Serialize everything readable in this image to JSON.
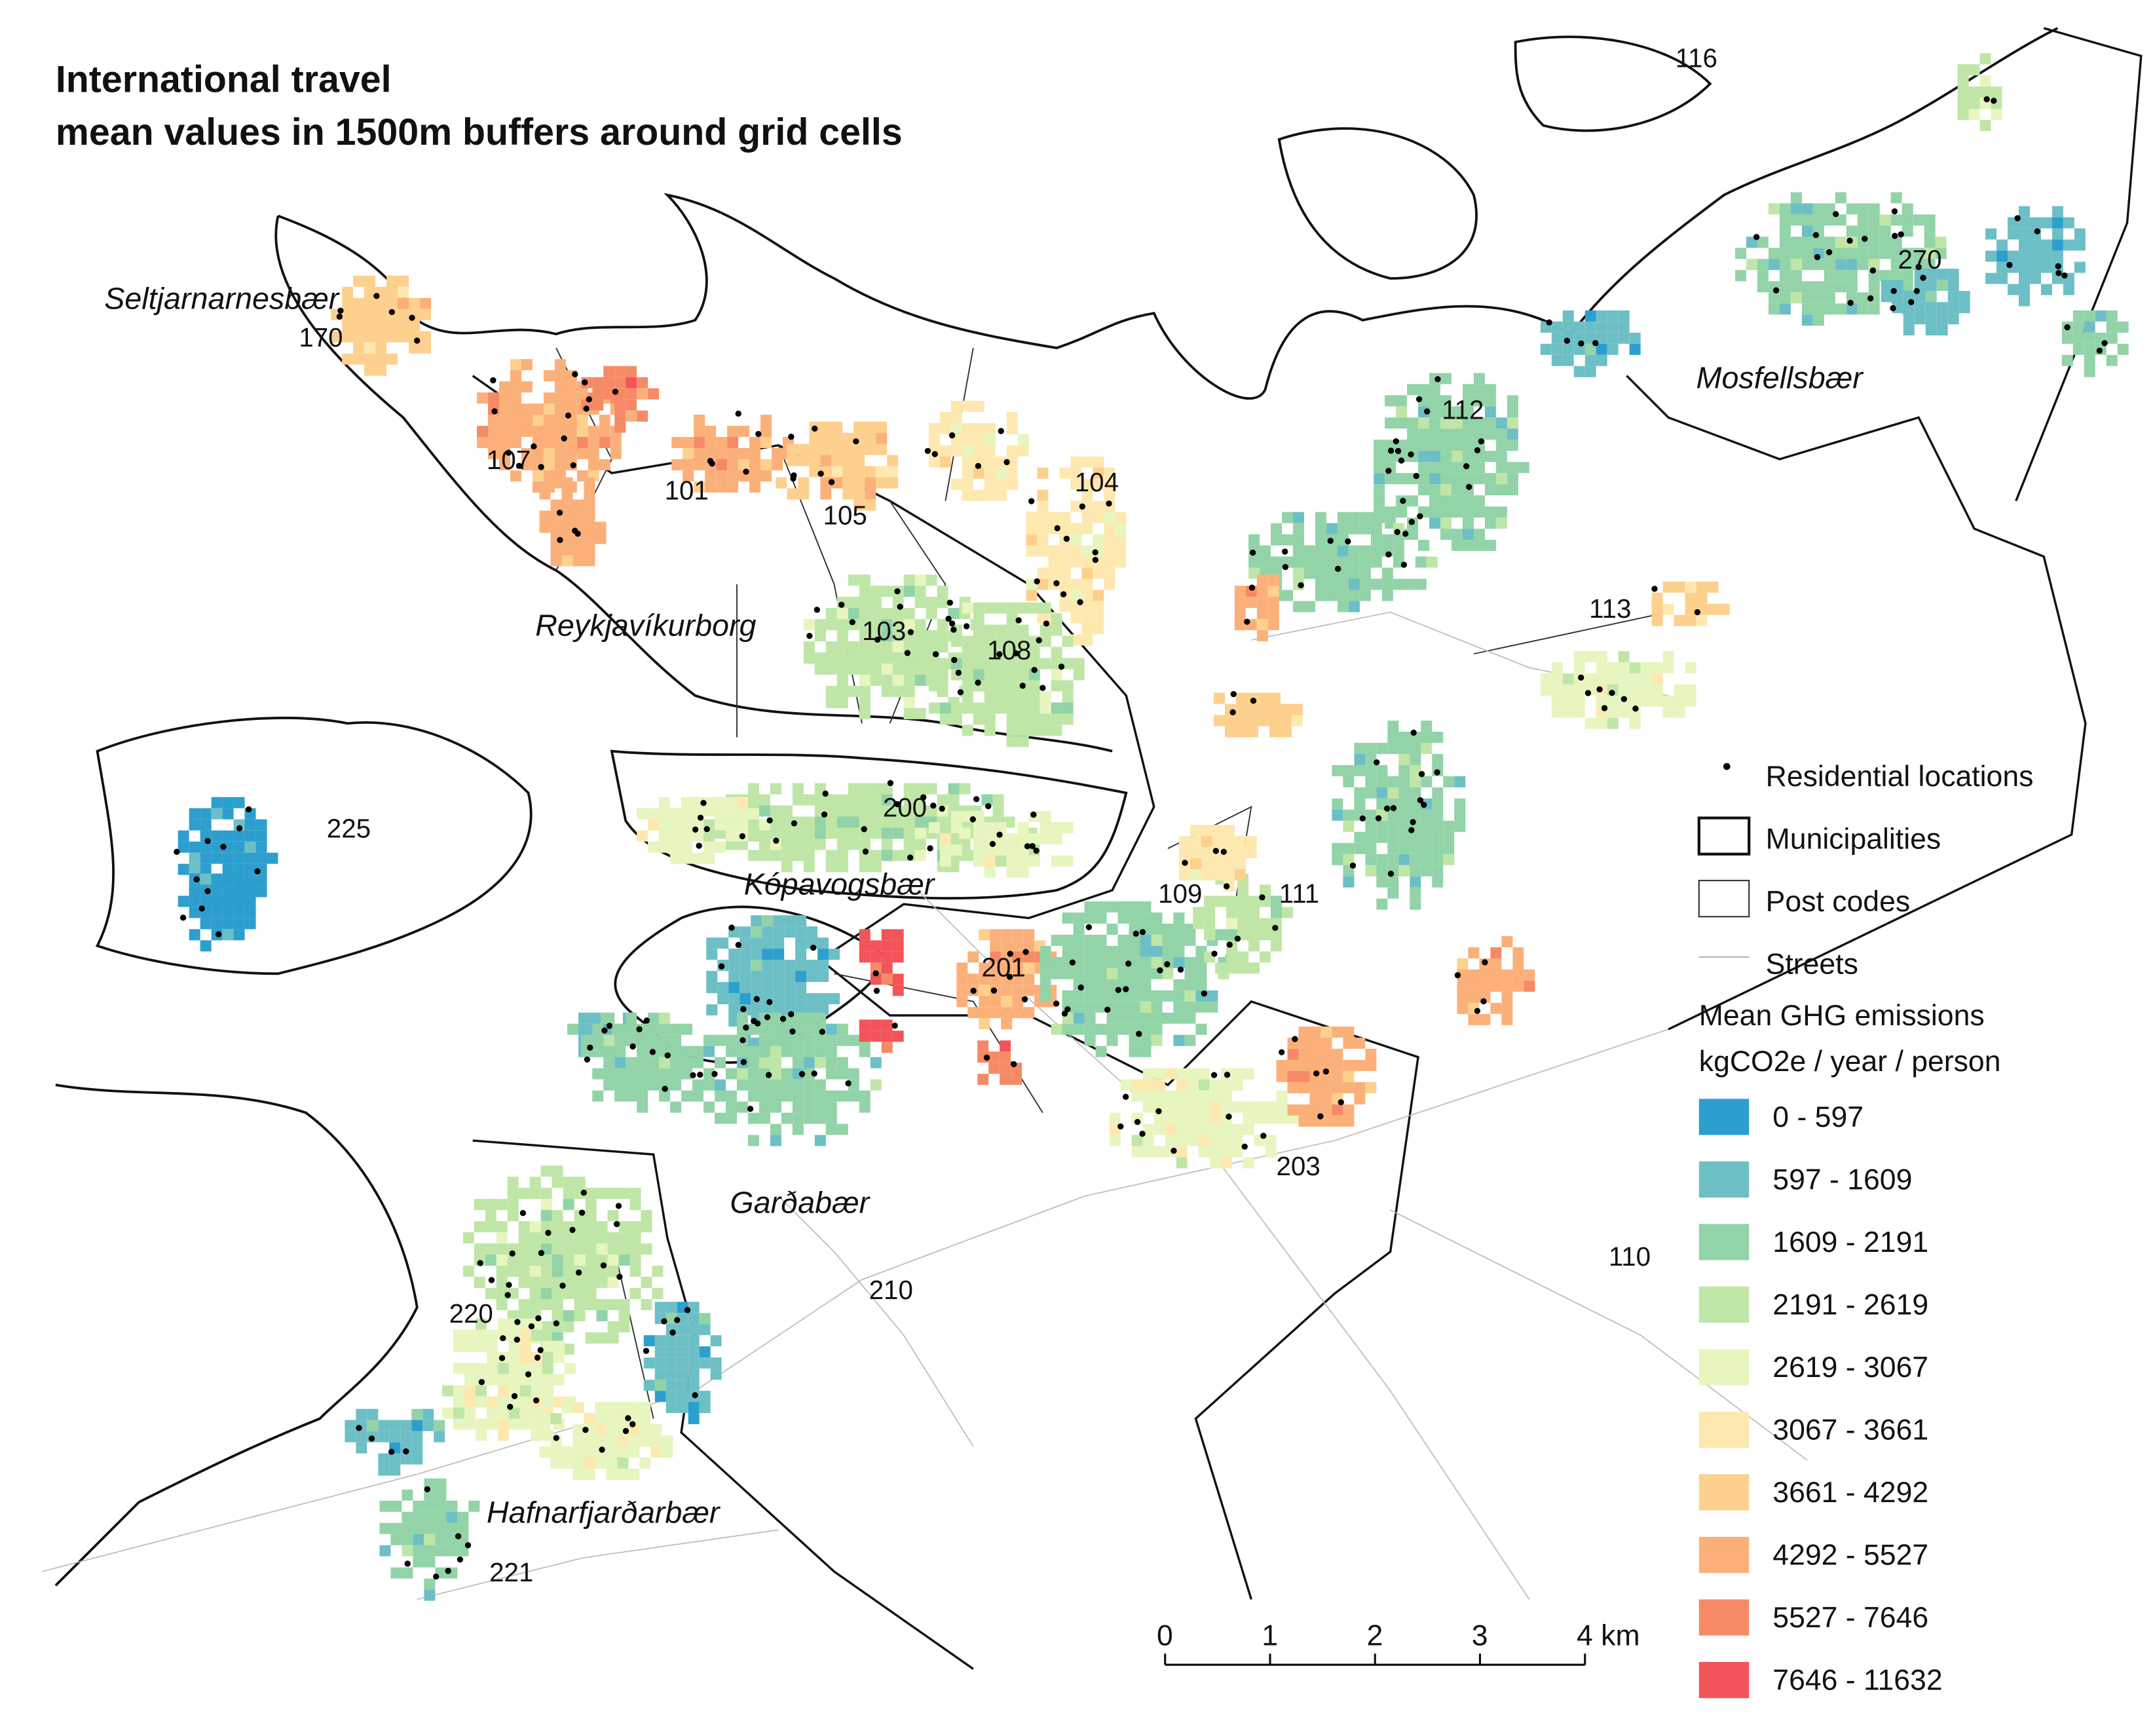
{
  "title": [
    "International travel",
    "mean values in 1500m buffers around grid cells"
  ],
  "municipalities": [
    "Seltjarnarnesbær",
    "Reykjavíkurborg",
    "Kópavogsbær",
    "Garðabær",
    "Hafnarfjarðarbær",
    "Mosfellsbær"
  ],
  "post_codes": [
    "116",
    "170",
    "107",
    "101",
    "105",
    "104",
    "103",
    "108",
    "112",
    "113",
    "270",
    "225",
    "200",
    "109",
    "111",
    "201",
    "203",
    "210",
    "110",
    "220",
    "221"
  ],
  "legend": {
    "items": [
      "Residential locations",
      "Municipalities",
      "Post codes",
      "Streets"
    ],
    "heading": [
      "Mean GHG emissions",
      "kgCO2e / year / person"
    ],
    "classes": [
      {
        "label": "0 - 597",
        "color": "#2c9fcf"
      },
      {
        "label": "597 - 1609",
        "color": "#6dbfc6"
      },
      {
        "label": "1609 - 2191",
        "color": "#92d3a8"
      },
      {
        "label": "2191 - 2619",
        "color": "#bfe6a6"
      },
      {
        "label": "2619 - 3067",
        "color": "#e7f5bf"
      },
      {
        "label": "3067 - 3661",
        "color": "#fde9b0"
      },
      {
        "label": "3661 - 4292",
        "color": "#fdd08d"
      },
      {
        "label": "4292 - 5527",
        "color": "#fbb07a"
      },
      {
        "label": "5527 - 7646",
        "color": "#f78a66"
      },
      {
        "label": "7646 - 11632",
        "color": "#f2545a"
      }
    ]
  },
  "scale_bar": [
    "0",
    "1",
    "2",
    "3",
    "4 km"
  ]
}
